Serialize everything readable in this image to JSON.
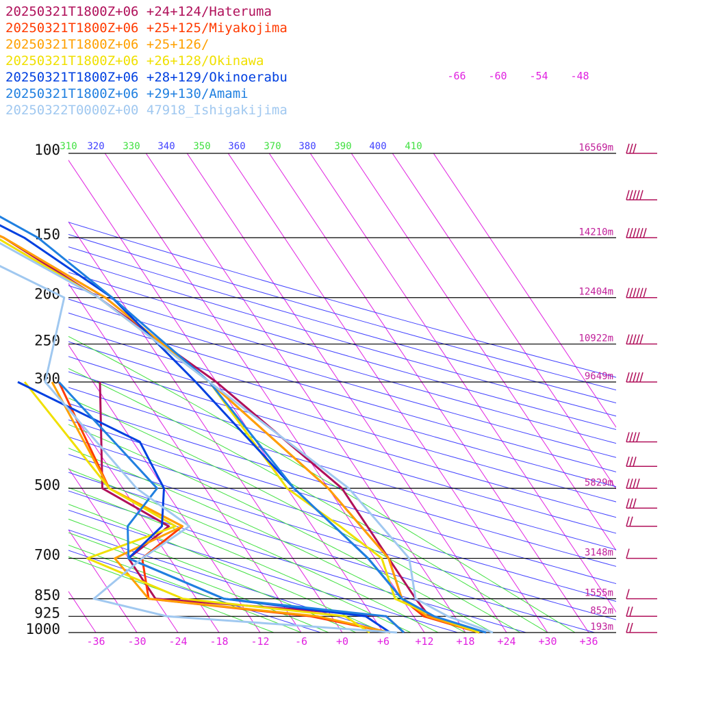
{
  "chart_data": {
    "type": "line",
    "title": "",
    "xlabel": "",
    "ylabel": "",
    "x_axis": {
      "quantity": "temperature (°C)",
      "ticks": [
        -36,
        -30,
        -24,
        -18,
        -12,
        -6,
        0,
        6,
        12,
        18,
        24,
        30,
        36
      ],
      "tick_labels": [
        "-36",
        "-30",
        "-24",
        "-18",
        "-12",
        "-6",
        "+0",
        "+6",
        "+12",
        "+18",
        "+24",
        "+30",
        "+36"
      ]
    },
    "y_axis": {
      "quantity": "pressure (hPa)",
      "scale": "log",
      "range": [
        1000,
        100
      ],
      "levels": [
        {
          "p": 100,
          "label": "100",
          "height": "16569m"
        },
        {
          "p": 150,
          "label": "150",
          "height": "14210m"
        },
        {
          "p": 200,
          "label": "200",
          "height": "12404m"
        },
        {
          "p": 250,
          "label": "250",
          "height": "10922m"
        },
        {
          "p": 300,
          "label": "300",
          "height": "9649m"
        },
        {
          "p": 500,
          "label": "500",
          "height": "5829m"
        },
        {
          "p": 700,
          "label": "700",
          "height": "3148m"
        },
        {
          "p": 850,
          "label": "850",
          "height": "1555m"
        },
        {
          "p": 925,
          "label": "925",
          "height": "852m"
        },
        {
          "p": 1000,
          "label": "1000",
          "height": "193m"
        }
      ]
    },
    "isotherm_top_labels": [
      "-66",
      "-60",
      "-54",
      "-48"
    ],
    "isentrope_labels": [
      "310",
      "320",
      "330",
      "340",
      "350",
      "360",
      "370",
      "380",
      "390",
      "400",
      "410"
    ],
    "grid": true,
    "legend": "top-left",
    "series": [
      {
        "name": "20250321T1800Z+06 +24+124/Hateruma",
        "color": "#b0105a",
        "temperature": [
          [
            1000,
            20
          ],
          [
            925,
            14.3
          ],
          [
            850,
            14
          ],
          [
            700,
            14
          ],
          [
            500,
            14
          ],
          [
            300,
            6
          ],
          [
            200,
            -3
          ],
          [
            150,
            -11
          ],
          [
            100,
            -31
          ]
        ],
        "dewpoint": [
          [
            1000,
            9
          ],
          [
            925,
            8
          ],
          [
            850,
            -24
          ],
          [
            700,
            -24
          ],
          [
            600,
            -15
          ],
          [
            500,
            -21
          ],
          [
            300,
            -11
          ]
        ]
      },
      {
        "name": "20250321T1800Z+06 +25+125/Miyakojima",
        "color": "#ff3a00",
        "temperature": [
          [
            1000,
            20
          ],
          [
            925,
            13.5
          ],
          [
            850,
            12
          ],
          [
            700,
            14
          ],
          [
            500,
            12
          ],
          [
            300,
            5
          ],
          [
            200,
            -2
          ],
          [
            150,
            -11
          ],
          [
            100,
            -30
          ]
        ],
        "dewpoint": [
          [
            1000,
            7
          ],
          [
            925,
            -3
          ],
          [
            850,
            -25
          ],
          [
            700,
            -22
          ],
          [
            600,
            -13
          ],
          [
            500,
            -20
          ],
          [
            300,
            -17
          ]
        ]
      },
      {
        "name": "20250321T1800Z+06 +25+126/",
        "color": "#ffa000",
        "temperature": [
          [
            1000,
            20
          ],
          [
            925,
            14
          ],
          [
            850,
            12
          ],
          [
            700,
            14
          ],
          [
            500,
            12
          ],
          [
            300,
            5
          ],
          [
            200,
            -2
          ],
          [
            150,
            -11
          ],
          [
            100,
            -30
          ]
        ],
        "dewpoint": [
          [
            1000,
            7
          ],
          [
            925,
            -2
          ],
          [
            850,
            -25
          ],
          [
            700,
            -26
          ],
          [
            600,
            -13
          ],
          [
            500,
            -20
          ],
          [
            300,
            -18
          ]
        ]
      },
      {
        "name": "20250321T1800Z+06 +26+128/Okinawa",
        "color": "#f0e000",
        "temperature": [
          [
            1000,
            20
          ],
          [
            925,
            15
          ],
          [
            850,
            11
          ],
          [
            700,
            13
          ],
          [
            600,
            10
          ],
          [
            500,
            6
          ],
          [
            300,
            5
          ],
          [
            200,
            -3
          ],
          [
            150,
            -12
          ],
          [
            100,
            -28
          ]
        ],
        "dewpoint": [
          [
            1000,
            4
          ],
          [
            925,
            2
          ],
          [
            850,
            -20
          ],
          [
            700,
            -30
          ],
          [
            600,
            -14
          ],
          [
            500,
            -20
          ],
          [
            300,
            -22
          ]
        ]
      },
      {
        "name": "20250321T1800Z+06 +28+129/Okinoerabu",
        "color": "#0040e0",
        "temperature": [
          [
            1000,
            21
          ],
          [
            925,
            15
          ],
          [
            850,
            12
          ],
          [
            700,
            11
          ],
          [
            500,
            7
          ],
          [
            300,
            3
          ],
          [
            200,
            -1
          ],
          [
            150,
            -8
          ],
          [
            100,
            -24
          ]
        ],
        "dewpoint": [
          [
            1000,
            7
          ],
          [
            925,
            5
          ],
          [
            850,
            -14
          ],
          [
            700,
            -24
          ],
          [
            600,
            -16
          ],
          [
            500,
            -12
          ],
          [
            400,
            -11
          ],
          [
            300,
            -23
          ]
        ]
      },
      {
        "name": "20250321T1800Z+06 +29+130/Amami",
        "color": "#2080e0",
        "temperature": [
          [
            1000,
            21
          ],
          [
            925,
            15
          ],
          [
            850,
            12
          ],
          [
            700,
            11
          ],
          [
            500,
            7
          ],
          [
            300,
            5
          ],
          [
            200,
            -1
          ],
          [
            150,
            -6
          ],
          [
            100,
            -20
          ]
        ],
        "dewpoint": [
          [
            1000,
            9
          ],
          [
            925,
            8
          ],
          [
            850,
            -14
          ],
          [
            700,
            -24
          ],
          [
            600,
            -21
          ],
          [
            500,
            -13
          ],
          [
            300,
            -17
          ]
        ]
      },
      {
        "name": "20250322T0000Z+00 47918_Ishigakijima",
        "color": "#a0c8f0",
        "temperature": [
          [
            1000,
            22
          ],
          [
            925,
            17
          ],
          [
            850,
            14
          ],
          [
            700,
            17
          ],
          [
            500,
            15
          ],
          [
            300,
            5
          ],
          [
            200,
            -3
          ],
          [
            150,
            -13
          ],
          [
            100,
            -26
          ]
        ],
        "dewpoint": [
          [
            1000,
            8
          ],
          [
            925,
            -24
          ],
          [
            850,
            -33
          ],
          [
            700,
            -22
          ],
          [
            600,
            -12
          ],
          [
            500,
            -16
          ],
          [
            300,
            -19
          ],
          [
            200,
            -8
          ],
          [
            150,
            -20
          ],
          [
            100,
            -11
          ]
        ]
      }
    ],
    "wind_barbs": [
      {
        "p": 100,
        "speed_kt": 30
      },
      {
        "p": 125,
        "speed_kt": 45
      },
      {
        "p": 150,
        "speed_kt": 55
      },
      {
        "p": 200,
        "speed_kt": 55
      },
      {
        "p": 250,
        "speed_kt": 50
      },
      {
        "p": 300,
        "speed_kt": 50
      },
      {
        "p": 400,
        "speed_kt": 40
      },
      {
        "p": 450,
        "speed_kt": 30
      },
      {
        "p": 500,
        "speed_kt": 35
      },
      {
        "p": 550,
        "speed_kt": 25
      },
      {
        "p": 600,
        "speed_kt": 20
      },
      {
        "p": 700,
        "speed_kt": 10
      },
      {
        "p": 850,
        "speed_kt": 10
      },
      {
        "p": 925,
        "speed_kt": 20
      },
      {
        "p": 1000,
        "speed_kt": 20
      }
    ]
  },
  "colors": {
    "isotherm": "#e020e0",
    "dry_adiabat": "#4040ff",
    "moist_adiabat": "#40e040",
    "isobar": "#000000",
    "label_pink": "#c0209a",
    "barb": "#b0105a"
  }
}
